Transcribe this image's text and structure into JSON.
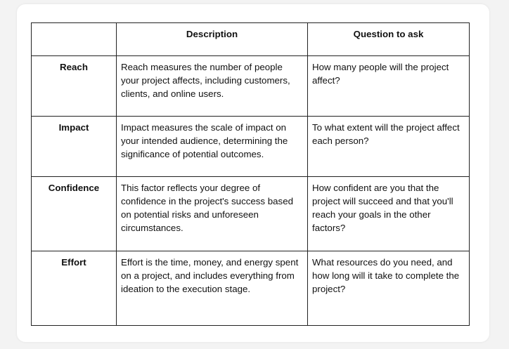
{
  "table": {
    "headers": [
      "",
      "Description",
      "Question to ask"
    ],
    "rows": [
      {
        "label": "Reach",
        "description": "Reach measures the number of people your project affects, including customers, clients, and online users.",
        "question": "How many people will the project affect?"
      },
      {
        "label": "Impact",
        "description": "Impact measures the scale of impact on your intended audience, determining the significance of potential outcomes.",
        "question": "To what extent will the project affect each person?"
      },
      {
        "label": "Confidence",
        "description": "This factor reflects your degree of confidence in the project's success based on potential risks and unforeseen circumstances.",
        "question": "How confident are you that the project will succeed and that you'll reach your goals in the other factors?"
      },
      {
        "label": "Effort",
        "description": "Effort is the time, money, and energy spent on a project, and includes everything from ideation to the execution stage.",
        "question": "What resources do you need, and how long will it take to complete the project?"
      }
    ]
  }
}
